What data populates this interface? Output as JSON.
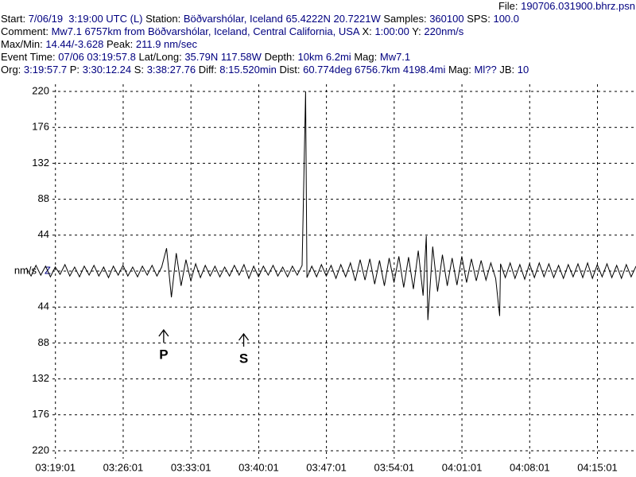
{
  "header": {
    "file": {
      "label": "File:",
      "value": "190706.031900.bhrz.psn"
    },
    "rows": [
      [
        {
          "label": "Start:",
          "value": "7/06/19  3:19:00 UTC (L)"
        },
        {
          "label": "Station:",
          "value": "Böðvarshólar, Iceland 65.4222N 20.7221W"
        },
        {
          "label": "Samples:",
          "value": "360100"
        },
        {
          "label": "SPS:",
          "value": "100.0"
        }
      ],
      [
        {
          "label": "Comment:",
          "value": "Mw7.1 6757km from Böðvarshólar, Iceland, Central California, USA"
        },
        {
          "label": "X:",
          "value": "1:00:00"
        },
        {
          "label": "Y:",
          "value": "220nm/s"
        }
      ],
      [
        {
          "label": "Max/Min:",
          "value": "14.44/-3.628"
        },
        {
          "label": "Peak:",
          "value": "211.9 nm/sec"
        }
      ],
      [
        {
          "label": "Event Time:",
          "value": "07/06 03:19:57.8"
        },
        {
          "label": "Lat/Long:",
          "value": "35.79N 117.58W"
        },
        {
          "label": "Depth:",
          "value": "10km 6.2mi"
        },
        {
          "label": "Mag:",
          "value": "Mw7.1"
        }
      ],
      [
        {
          "label": "Org:",
          "value": "3:19:57.7"
        },
        {
          "label": "P:",
          "value": "3:30:12.24"
        },
        {
          "label": "S:",
          "value": "3:38:27.76"
        },
        {
          "label": "Diff:",
          "value": "8:15.520min"
        },
        {
          "label": "Dist:",
          "value": "60.774deg 6756.7km 4198.4mi"
        },
        {
          "label": "Mag:",
          "value": "Ml??"
        },
        {
          "label": "JB:",
          "value": "10"
        }
      ]
    ]
  },
  "chart_data": {
    "type": "line",
    "channel": "Z",
    "channel_color": "#000080",
    "grid": true,
    "xlim": [
      "03:16:00",
      "04:19:00"
    ],
    "xticks": [
      "03:19:01",
      "03:26:01",
      "03:33:01",
      "03:40:01",
      "03:47:01",
      "03:54:01",
      "04:01:01",
      "04:08:01",
      "04:15:01"
    ],
    "ylim": [
      -220,
      220
    ],
    "yticks": [
      220,
      176,
      132,
      88,
      44,
      {
        "value": 0,
        "label": "nm/s"
      },
      {
        "value": -44,
        "label": "44"
      },
      {
        "value": -88,
        "label": "88"
      },
      {
        "value": -132,
        "label": "132"
      },
      {
        "value": -176,
        "label": "176"
      },
      {
        "value": -220,
        "label": "220"
      }
    ],
    "annotations": [
      {
        "label": "P",
        "x": "03:30:12"
      },
      {
        "label": "S",
        "x": "03:38:28"
      }
    ],
    "series": [
      {
        "color": "#000000",
        "x": [
          "03:16:00",
          "03:16:30",
          "03:17:00",
          "03:17:30",
          "03:18:00",
          "03:18:30",
          "03:19:00",
          "03:19:30",
          "03:20:00",
          "03:20:30",
          "03:21:00",
          "03:21:30",
          "03:22:00",
          "03:22:30",
          "03:23:00",
          "03:23:30",
          "03:24:00",
          "03:24:30",
          "03:25:00",
          "03:25:30",
          "03:26:00",
          "03:26:30",
          "03:27:00",
          "03:27:30",
          "03:28:00",
          "03:28:30",
          "03:29:00",
          "03:29:30",
          "03:30:00",
          "03:30:30",
          "03:31:00",
          "03:31:30",
          "03:32:00",
          "03:32:30",
          "03:33:00",
          "03:33:30",
          "03:34:00",
          "03:34:30",
          "03:35:00",
          "03:35:30",
          "03:36:00",
          "03:36:30",
          "03:37:00",
          "03:37:30",
          "03:38:00",
          "03:38:30",
          "03:39:00",
          "03:39:30",
          "03:40:00",
          "03:40:30",
          "03:41:00",
          "03:41:30",
          "03:42:00",
          "03:42:30",
          "03:43:00",
          "03:43:30",
          "03:44:00",
          "03:44:30",
          "03:44:52",
          "03:45:00",
          "03:45:30",
          "03:46:00",
          "03:46:30",
          "03:47:00",
          "03:47:30",
          "03:48:00",
          "03:48:30",
          "03:49:00",
          "03:49:30",
          "03:50:00",
          "03:50:30",
          "03:51:00",
          "03:51:30",
          "03:52:00",
          "03:52:30",
          "03:53:00",
          "03:53:30",
          "03:54:00",
          "03:54:30",
          "03:55:00",
          "03:55:30",
          "03:56:00",
          "03:56:30",
          "03:57:00",
          "03:57:20",
          "03:57:30",
          "03:58:00",
          "03:58:30",
          "03:59:00",
          "03:59:30",
          "04:00:00",
          "04:00:30",
          "04:01:00",
          "04:01:30",
          "04:02:00",
          "04:02:30",
          "04:03:00",
          "04:03:30",
          "04:04:00",
          "04:04:30",
          "04:04:55",
          "04:05:00",
          "04:05:30",
          "04:06:00",
          "04:06:30",
          "04:07:00",
          "04:07:30",
          "04:08:00",
          "04:08:30",
          "04:09:00",
          "04:09:30",
          "04:10:00",
          "04:10:30",
          "04:11:00",
          "04:11:30",
          "04:12:00",
          "04:12:30",
          "04:13:00",
          "04:13:30",
          "04:14:00",
          "04:14:30",
          "04:15:00",
          "04:15:30",
          "04:16:00",
          "04:16:30",
          "04:17:00",
          "04:17:30",
          "04:18:00",
          "04:18:30",
          "04:19:00"
        ],
        "values": [
          4,
          -6,
          7,
          -5,
          6,
          -7,
          5,
          -4,
          8,
          -6,
          5,
          -7,
          6,
          -5,
          7,
          -6,
          5,
          -8,
          6,
          -5,
          7,
          -6,
          5,
          -7,
          6,
          -5,
          7,
          -6,
          5,
          28,
          -32,
          22,
          -18,
          14,
          -12,
          9,
          -8,
          7,
          -6,
          6,
          -7,
          5,
          -6,
          7,
          -5,
          8,
          -9,
          6,
          -7,
          6,
          -5,
          7,
          -6,
          5,
          -7,
          6,
          -5,
          7,
          220,
          -8,
          6,
          -7,
          8,
          -6,
          7,
          -9,
          8,
          -7,
          10,
          -12,
          14,
          -11,
          15,
          -16,
          13,
          -18,
          16,
          -14,
          18,
          -20,
          17,
          -22,
          25,
          -30,
          43,
          -60,
          30,
          -25,
          20,
          -18,
          16,
          -17,
          18,
          -14,
          15,
          -12,
          13,
          -11,
          10,
          -9,
          -55,
          9,
          -8,
          10,
          -9,
          8,
          -10,
          9,
          -8,
          10,
          -7,
          9,
          -8,
          7,
          -9,
          8,
          -7,
          9,
          -8,
          10,
          -9,
          8,
          -7,
          9,
          -8,
          7,
          -9,
          8,
          -7,
          6
        ]
      }
    ]
  }
}
